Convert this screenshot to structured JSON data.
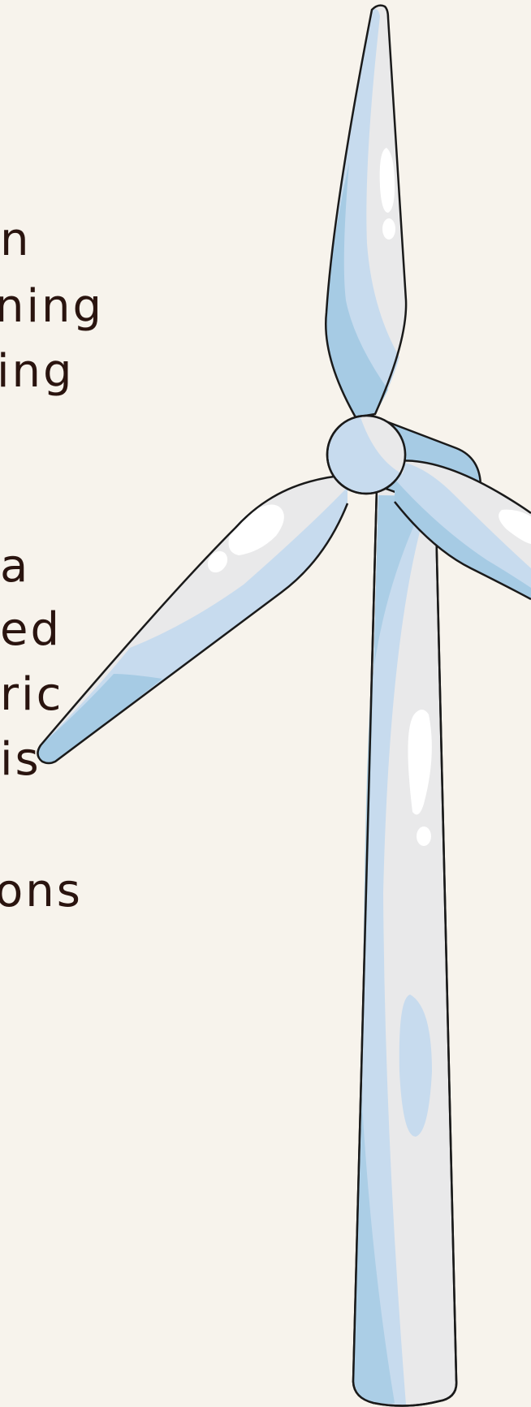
{
  "text_fragments": [
    {
      "text": "n"
    },
    {
      "text": "ning"
    },
    {
      "text": "ing"
    },
    {
      "text": "a"
    },
    {
      "text": "ed"
    },
    {
      "text": "ric"
    },
    {
      "text": "is"
    },
    {
      "text": "ons"
    }
  ],
  "illustration": {
    "subject": "wind-turbine",
    "colors": {
      "background": "#f7f3ec",
      "blade_light": "#e9e9ea",
      "blade_mid": "#c7dbee",
      "blade_dark": "#a6cbe4",
      "outline": "#1a1a1a",
      "highlight": "#ffffff",
      "text": "#2a140f"
    }
  }
}
